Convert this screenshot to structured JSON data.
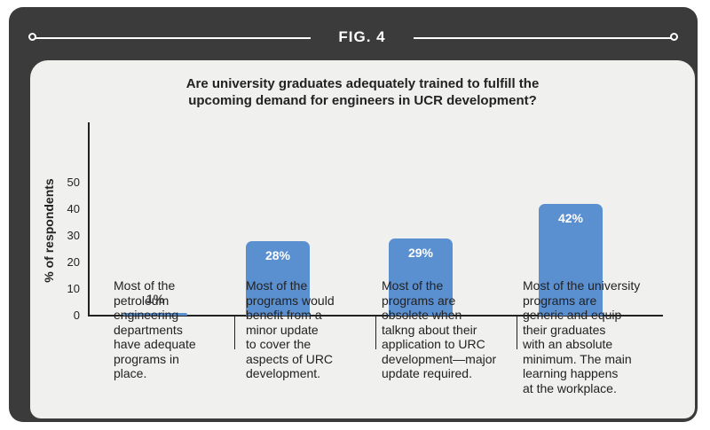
{
  "figure": {
    "label": "FIG. 4"
  },
  "chart_data": {
    "type": "bar",
    "title_lines": [
      "Are university graduates adequately trained to fulfill the",
      "upcoming demand for engineers in UCR development?"
    ],
    "ylabel": "% of respondents",
    "ylim": [
      0,
      50
    ],
    "yticks": [
      "50",
      "40",
      "30",
      "20",
      "10",
      "0"
    ],
    "grid": false,
    "categories": [
      [
        "Most of the",
        "petroleum",
        "engineering",
        "departments",
        "have adequate",
        "programs in",
        "place."
      ],
      [
        "Most of the",
        "programs would",
        "benefit from a",
        "minor update",
        "to cover the",
        "aspects of URC",
        "development."
      ],
      [
        "Most of the",
        "programs are",
        "obsolete when",
        "talkng about their",
        "application to URC",
        "development—major",
        "update required."
      ],
      [
        "Most of the university",
        "programs are",
        "generic and equip",
        "their graduates",
        "with an absolute",
        "minimum. The main",
        "learning happens",
        "at the workplace."
      ]
    ],
    "values": [
      1,
      28,
      29,
      42
    ],
    "data_labels": [
      "1%",
      "28%",
      "29%",
      "42%"
    ],
    "bar_color": "#5a8fd0"
  },
  "colors": {
    "frame": "#3b3b3b",
    "panel": "#f0f0ef",
    "text": "#222222"
  }
}
